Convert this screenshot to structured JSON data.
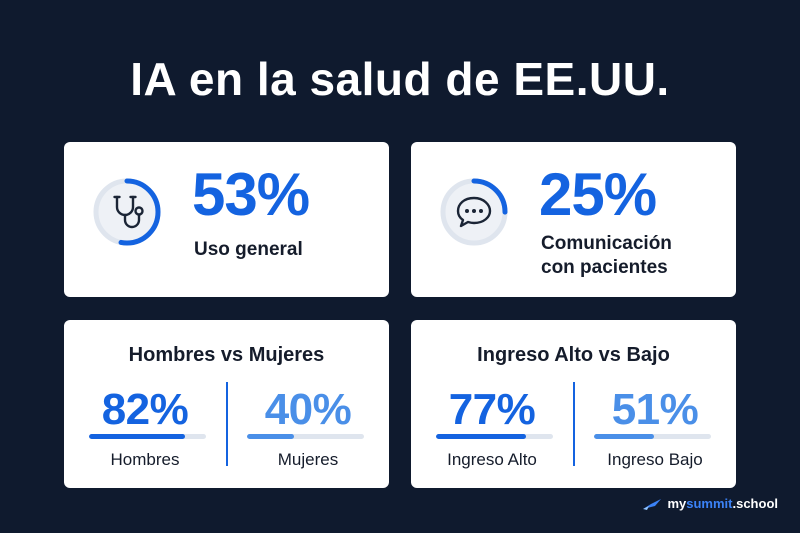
{
  "title": "IA en la salud de EE.UU.",
  "colors": {
    "background": "#0f1a2e",
    "accent": "#1463e0",
    "accent_light": "#4a8fe8",
    "track": "#dfe5ee"
  },
  "stats": [
    {
      "value": "53%",
      "label": "Uso general",
      "icon": "stethoscope-icon",
      "ring_fraction": 0.53
    },
    {
      "value": "25%",
      "label": "Comunicación\ncon pacientes",
      "icon": "chat-bubble-icon",
      "ring_fraction": 0.25
    }
  ],
  "comparisons": [
    {
      "title": "Hombres vs Mujeres",
      "left": {
        "value": "82%",
        "label": "Hombres",
        "fraction": 0.82
      },
      "right": {
        "value": "40%",
        "label": "Mujeres",
        "fraction": 0.4
      }
    },
    {
      "title": "Ingreso Alto vs Bajo",
      "left": {
        "value": "77%",
        "label": "Ingreso Alto",
        "fraction": 0.77
      },
      "right": {
        "value": "51%",
        "label": "Ingreso Bajo",
        "fraction": 0.51
      }
    }
  ],
  "brand": {
    "part1": "my",
    "part2": "summit",
    "part3": ".school",
    "icon": "rocket-icon"
  }
}
